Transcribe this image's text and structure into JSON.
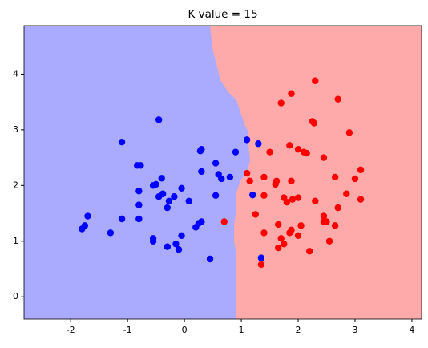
{
  "chart_data": {
    "type": "scatter",
    "title": "K value = 15",
    "xlim": [
      -2.82,
      4.17
    ],
    "ylim": [
      -0.4,
      4.87
    ],
    "xticks": [
      -2,
      -1,
      0,
      1,
      2,
      3,
      4
    ],
    "yticks": [
      0,
      1,
      2,
      3,
      4
    ],
    "region_colors": [
      "#aaaaff",
      "#ffaaaa"
    ],
    "series": [
      {
        "color": "#0000ff",
        "x": [
          1.35,
          1.2,
          1.1,
          1.3,
          0.9,
          0.55,
          0.6,
          0.65,
          0.8,
          0.3,
          0.28,
          0.3,
          0.55,
          0.45,
          0.3,
          0.25,
          0.2,
          -0.05,
          -0.15,
          -0.1,
          -0.3,
          -0.55,
          -0.55,
          -0.8,
          -0.8,
          -1.1,
          -1.3,
          -1.7,
          -1.75,
          -1.8,
          -0.45,
          -0.05,
          0.08,
          -0.27,
          -0.3,
          -0.5,
          -0.55,
          -0.38,
          -0.4,
          -0.8,
          -0.83,
          -0.77,
          -1.1,
          -0.45,
          -0.18
        ],
        "y": [
          0.7,
          1.83,
          2.82,
          2.75,
          2.6,
          2.4,
          2.2,
          2.12,
          2.15,
          2.65,
          2.62,
          2.25,
          1.82,
          0.68,
          1.35,
          1.32,
          1.25,
          1.1,
          0.95,
          0.85,
          0.9,
          1.05,
          1.0,
          1.4,
          1.65,
          1.4,
          1.15,
          1.45,
          1.28,
          1.22,
          1.8,
          1.95,
          1.72,
          1.72,
          1.6,
          2.02,
          2.0,
          1.85,
          2.13,
          1.9,
          2.36,
          2.36,
          2.78,
          3.18,
          1.8
        ]
      },
      {
        "color": "#ff0000",
        "x": [
          2.3,
          1.88,
          1.7,
          2.7,
          2.25,
          2.28,
          2.9,
          1.5,
          1.85,
          2.0,
          2.1,
          2.15,
          2.45,
          1.1,
          1.15,
          1.4,
          1.6,
          1.62,
          1.88,
          3.1,
          3.0,
          2.65,
          1.4,
          1.75,
          1.8,
          1.9,
          2.0,
          2.3,
          2.85,
          3.1,
          1.25,
          1.65,
          2.05,
          2.45,
          2.45,
          2.5,
          2.65,
          2.7,
          0.7,
          1.4,
          1.7,
          1.85,
          1.88,
          2.0,
          1.75,
          1.65,
          2.2,
          2.55,
          1.35
        ],
        "y": [
          3.88,
          3.65,
          3.48,
          3.55,
          3.15,
          3.12,
          2.95,
          2.6,
          2.72,
          2.65,
          2.6,
          2.58,
          2.5,
          2.22,
          2.08,
          2.15,
          2.02,
          2.08,
          2.08,
          2.28,
          2.12,
          2.15,
          1.82,
          1.78,
          1.7,
          1.75,
          1.78,
          1.72,
          1.85,
          1.75,
          1.48,
          1.3,
          1.28,
          1.45,
          1.35,
          1.35,
          1.28,
          1.6,
          1.35,
          1.15,
          1.05,
          1.15,
          1.2,
          1.1,
          0.95,
          0.88,
          0.82,
          1.0,
          0.58
        ]
      }
    ]
  }
}
